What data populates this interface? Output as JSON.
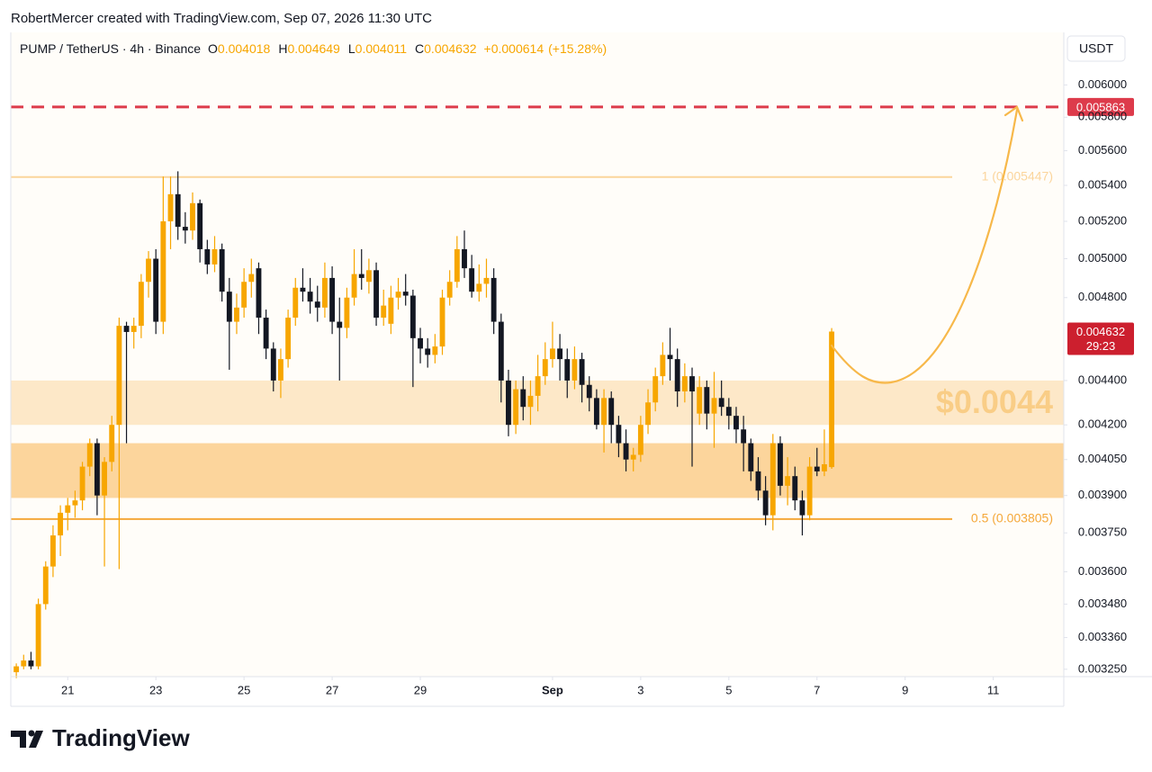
{
  "header": "RobertMercer created with TradingView.com, Sep 07, 2026 11:30 UTC",
  "logo": "TradingView",
  "chart_data": {
    "type": "candlestick",
    "symbol": "PUMP / TetherUS · 4h · Binance",
    "legend_keys": [
      "O",
      "H",
      "L",
      "C"
    ],
    "change": "+0.000614",
    "change_pct": "(+15.28%)",
    "currency": "USDT",
    "countdown": "29:23",
    "up_color": "#f7a600",
    "down_color": "#131722",
    "log_scale": true,
    "grid": false,
    "ylim": [
      0.003225,
      0.00634
    ],
    "yticks": [
      {
        "value": 0.006,
        "label": "0.006000"
      },
      {
        "value": 0.0058,
        "label": "0.005800"
      },
      {
        "value": 0.0056,
        "label": "0.005600"
      },
      {
        "value": 0.0054,
        "label": "0.005400"
      },
      {
        "value": 0.0052,
        "label": "0.005200"
      },
      {
        "value": 0.005,
        "label": "0.005000"
      },
      {
        "value": 0.0048,
        "label": "0.004800"
      },
      {
        "value": 0.0044,
        "label": "0.004400"
      },
      {
        "value": 0.0042,
        "label": "0.004200"
      },
      {
        "value": 0.00405,
        "label": "0.004050"
      },
      {
        "value": 0.0039,
        "label": "0.003900"
      },
      {
        "value": 0.00375,
        "label": "0.003750"
      },
      {
        "value": 0.0036,
        "label": "0.003600"
      },
      {
        "value": 0.00348,
        "label": "0.003480"
      },
      {
        "value": 0.00336,
        "label": "0.003360"
      },
      {
        "value": 0.00325,
        "label": "0.003250"
      }
    ],
    "xlim": [
      -0.75,
      142.6
    ],
    "xticks": [
      {
        "value": 7,
        "label": "21"
      },
      {
        "value": 19,
        "label": "23"
      },
      {
        "value": 31,
        "label": "25"
      },
      {
        "value": 43,
        "label": "27"
      },
      {
        "value": 55,
        "label": "29"
      },
      {
        "value": 73,
        "label": "Sep"
      },
      {
        "value": 85,
        "label": "3"
      },
      {
        "value": 97,
        "label": "5"
      },
      {
        "value": 109,
        "label": "7"
      },
      {
        "value": 121,
        "label": "9"
      },
      {
        "value": 133,
        "label": "11"
      }
    ],
    "zones": [
      {
        "range": [
          0.0042,
          0.0044
        ],
        "color": "#fde8c8",
        "label": "$0.0044"
      },
      {
        "range": [
          0.00389,
          0.00412
        ],
        "color": "#fcd59c"
      }
    ],
    "levels": [
      {
        "value": 0.005863,
        "color": "#dd3b4b",
        "style": "dashed"
      },
      {
        "value": 0.005447,
        "label": "1 (0.005447)",
        "color": "#fbd59c",
        "style": "solid"
      },
      {
        "value": 0.003805,
        "label": "0.5 (0.003805)",
        "color": "#f5a83a",
        "style": "solid"
      }
    ],
    "ohlc": [
      [
        0.00324,
        0.00327,
        0.00322,
        0.00326
      ],
      [
        0.00326,
        0.0033,
        0.00325,
        0.00328
      ],
      [
        0.00328,
        0.00331,
        0.00325,
        0.00326
      ],
      [
        0.00326,
        0.0035,
        0.00325,
        0.00348
      ],
      [
        0.00348,
        0.00364,
        0.00346,
        0.00362
      ],
      [
        0.00362,
        0.00378,
        0.00358,
        0.00374
      ],
      [
        0.00374,
        0.00386,
        0.00366,
        0.00383
      ],
      [
        0.00383,
        0.00389,
        0.00376,
        0.00386
      ],
      [
        0.00386,
        0.00392,
        0.00381,
        0.00388
      ],
      [
        0.00388,
        0.00404,
        0.00384,
        0.00402
      ],
      [
        0.00402,
        0.00414,
        0.00398,
        0.00412
      ],
      [
        0.00412,
        0.00414,
        0.00382,
        0.0039
      ],
      [
        0.0039,
        0.00406,
        0.00362,
        0.00404
      ],
      [
        0.00404,
        0.00424,
        0.004,
        0.0042
      ],
      [
        0.0042,
        0.0047,
        0.00361,
        0.00466
      ],
      [
        0.00466,
        0.00468,
        0.00412,
        0.00463
      ],
      [
        0.00463,
        0.0047,
        0.00455,
        0.00466
      ],
      [
        0.00466,
        0.00492,
        0.0046,
        0.00488
      ],
      [
        0.00488,
        0.00504,
        0.0048,
        0.005
      ],
      [
        0.005,
        0.00505,
        0.00462,
        0.00468
      ],
      [
        0.00468,
        0.00545,
        0.00462,
        0.0052
      ],
      [
        0.0052,
        0.00545,
        0.00505,
        0.00535
      ],
      [
        0.00535,
        0.00548,
        0.0051,
        0.00517
      ],
      [
        0.00517,
        0.00525,
        0.00508,
        0.00515
      ],
      [
        0.00515,
        0.00536,
        0.0051,
        0.0053
      ],
      [
        0.0053,
        0.00532,
        0.00498,
        0.00505
      ],
      [
        0.00505,
        0.0051,
        0.00492,
        0.00497
      ],
      [
        0.00497,
        0.00512,
        0.00493,
        0.00505
      ],
      [
        0.00505,
        0.00508,
        0.00478,
        0.00483
      ],
      [
        0.00483,
        0.0049,
        0.00445,
        0.00468
      ],
      [
        0.00468,
        0.00482,
        0.00462,
        0.00475
      ],
      [
        0.00475,
        0.00495,
        0.0047,
        0.00488
      ],
      [
        0.00488,
        0.005,
        0.0048,
        0.00492
      ],
      [
        0.00495,
        0.00498,
        0.00462,
        0.0047
      ],
      [
        0.0047,
        0.00474,
        0.0045,
        0.00455
      ],
      [
        0.00455,
        0.00458,
        0.00435,
        0.0044
      ],
      [
        0.0044,
        0.00455,
        0.00432,
        0.0045
      ],
      [
        0.0045,
        0.00474,
        0.00446,
        0.0047
      ],
      [
        0.0047,
        0.0049,
        0.00466,
        0.00485
      ],
      [
        0.00485,
        0.00495,
        0.00478,
        0.00483
      ],
      [
        0.00483,
        0.0049,
        0.00472,
        0.00478
      ],
      [
        0.00478,
        0.00486,
        0.00468,
        0.00475
      ],
      [
        0.00475,
        0.00498,
        0.0047,
        0.0049
      ],
      [
        0.0049,
        0.00496,
        0.00462,
        0.00468
      ],
      [
        0.00468,
        0.0048,
        0.0044,
        0.00465
      ],
      [
        0.00465,
        0.00485,
        0.0046,
        0.0048
      ],
      [
        0.0048,
        0.00505,
        0.00476,
        0.00492
      ],
      [
        0.00492,
        0.00505,
        0.00484,
        0.0049
      ],
      [
        0.00488,
        0.005,
        0.00482,
        0.00494
      ],
      [
        0.00494,
        0.00498,
        0.00466,
        0.0047
      ],
      [
        0.0047,
        0.00484,
        0.00466,
        0.00476
      ],
      [
        0.00467,
        0.00486,
        0.00462,
        0.0048
      ],
      [
        0.0048,
        0.0049,
        0.00474,
        0.00483
      ],
      [
        0.00483,
        0.00492,
        0.00476,
        0.00481
      ],
      [
        0.00481,
        0.00484,
        0.00437,
        0.0046
      ],
      [
        0.0046,
        0.00465,
        0.00448,
        0.00455
      ],
      [
        0.00455,
        0.0046,
        0.00446,
        0.00452
      ],
      [
        0.00452,
        0.00462,
        0.00448,
        0.00456
      ],
      [
        0.00456,
        0.00484,
        0.00452,
        0.0048
      ],
      [
        0.0048,
        0.00494,
        0.00476,
        0.00488
      ],
      [
        0.00488,
        0.00512,
        0.00485,
        0.00505
      ],
      [
        0.00505,
        0.00515,
        0.0049,
        0.00495
      ],
      [
        0.00495,
        0.00502,
        0.0048,
        0.00483
      ],
      [
        0.00483,
        0.00497,
        0.00478,
        0.00487
      ],
      [
        0.00487,
        0.005,
        0.0048,
        0.0049
      ],
      [
        0.0049,
        0.00495,
        0.00462,
        0.00468
      ],
      [
        0.00468,
        0.00472,
        0.0043,
        0.0044
      ],
      [
        0.0044,
        0.00445,
        0.00415,
        0.0042
      ],
      [
        0.0042,
        0.0044,
        0.00416,
        0.00436
      ],
      [
        0.00436,
        0.00442,
        0.00422,
        0.00428
      ],
      [
        0.00428,
        0.0044,
        0.0042,
        0.00433
      ],
      [
        0.00433,
        0.00452,
        0.00426,
        0.00442
      ],
      [
        0.00442,
        0.00458,
        0.00438,
        0.0045
      ],
      [
        0.0045,
        0.00468,
        0.00446,
        0.00455
      ],
      [
        0.00455,
        0.00462,
        0.0044,
        0.0045
      ],
      [
        0.0045,
        0.00455,
        0.00432,
        0.0044
      ],
      [
        0.0044,
        0.00456,
        0.00436,
        0.0045
      ],
      [
        0.0045,
        0.00453,
        0.0043,
        0.00438
      ],
      [
        0.00438,
        0.00442,
        0.00426,
        0.00432
      ],
      [
        0.00432,
        0.00436,
        0.00418,
        0.0042
      ],
      [
        0.0042,
        0.00436,
        0.00408,
        0.00432
      ],
      [
        0.00432,
        0.00435,
        0.00412,
        0.0042
      ],
      [
        0.0042,
        0.00424,
        0.00406,
        0.00412
      ],
      [
        0.00412,
        0.00418,
        0.004,
        0.00405
      ],
      [
        0.00405,
        0.0041,
        0.004,
        0.00407
      ],
      [
        0.00407,
        0.00424,
        0.00404,
        0.0042
      ],
      [
        0.0042,
        0.00436,
        0.00416,
        0.0043
      ],
      [
        0.0043,
        0.00446,
        0.00426,
        0.00442
      ],
      [
        0.00442,
        0.00458,
        0.00438,
        0.00452
      ],
      [
        0.00452,
        0.00465,
        0.0044,
        0.0045
      ],
      [
        0.0045,
        0.00455,
        0.00428,
        0.00435
      ],
      [
        0.00435,
        0.00448,
        0.0043,
        0.00442
      ],
      [
        0.00442,
        0.00446,
        0.00402,
        0.00435
      ],
      [
        0.00425,
        0.00442,
        0.0042,
        0.00437
      ],
      [
        0.00437,
        0.0044,
        0.00418,
        0.00425
      ],
      [
        0.00425,
        0.00444,
        0.0041,
        0.00432
      ],
      [
        0.00432,
        0.0044,
        0.00424,
        0.00428
      ],
      [
        0.00428,
        0.00432,
        0.00418,
        0.00424
      ],
      [
        0.00424,
        0.00428,
        0.00412,
        0.00418
      ],
      [
        0.00418,
        0.00424,
        0.004,
        0.00412
      ],
      [
        0.00412,
        0.00414,
        0.00396,
        0.004
      ],
      [
        0.004,
        0.00406,
        0.00388,
        0.00392
      ],
      [
        0.00392,
        0.00398,
        0.00378,
        0.00382
      ],
      [
        0.00382,
        0.00416,
        0.00376,
        0.00412
      ],
      [
        0.00412,
        0.00415,
        0.0039,
        0.00394
      ],
      [
        0.00394,
        0.00406,
        0.00386,
        0.00398
      ],
      [
        0.00398,
        0.00402,
        0.00384,
        0.00388
      ],
      [
        0.00388,
        0.00392,
        0.00374,
        0.00382
      ],
      [
        0.00382,
        0.00406,
        0.0038,
        0.00402
      ],
      [
        0.00402,
        0.0041,
        0.00398,
        0.004
      ],
      [
        0.004,
        0.00418,
        0.00398,
        0.00403
      ],
      [
        0.004018,
        0.004649,
        0.004011,
        0.004632
      ]
    ]
  }
}
